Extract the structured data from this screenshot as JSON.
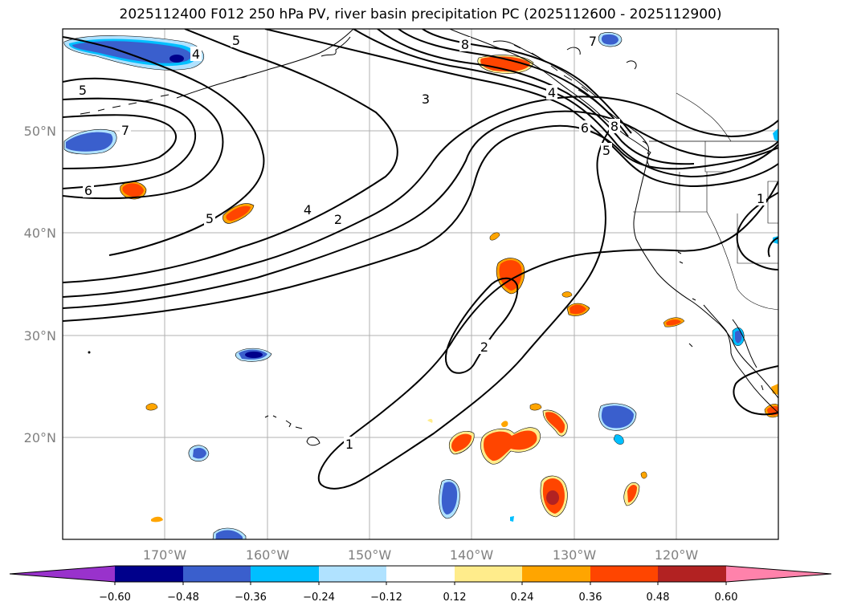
{
  "title": "2025112400 F012 250 hPa PV, river basin precipitation PC (2025112600 - 2025112900)",
  "map": {
    "lon_range": [
      -180,
      -110
    ],
    "lat_range": [
      10,
      60
    ],
    "lon_ticks": [
      {
        "lon": -170,
        "label": "170°W"
      },
      {
        "lon": -160,
        "label": "160°W"
      },
      {
        "lon": -150,
        "label": "150°W"
      },
      {
        "lon": -140,
        "label": "140°W"
      },
      {
        "lon": -130,
        "label": "130°W"
      },
      {
        "lon": -120,
        "label": "120°W"
      }
    ],
    "lat_ticks": [
      {
        "lat": 50,
        "label": "50°N"
      },
      {
        "lat": 40,
        "label": "40°N"
      },
      {
        "lat": 30,
        "label": "30°N"
      },
      {
        "lat": 20,
        "label": "20°N"
      }
    ],
    "grid": true,
    "tick_color": "#808080"
  },
  "colorbar": {
    "extend": "both",
    "ticks": [
      "−0.60",
      "−0.48",
      "−0.36",
      "−0.24",
      "−0.12",
      "0.12",
      "0.24",
      "0.36",
      "0.48",
      "0.60"
    ],
    "levels": [
      -0.6,
      -0.48,
      -0.36,
      -0.24,
      -0.12,
      0.12,
      0.24,
      0.36,
      0.48,
      0.6
    ],
    "colors": [
      "#9932cc",
      "#00008b",
      "#3a5fcd",
      "#00bfff",
      "#b0e2ff",
      "#ffffff",
      "#ffec8b",
      "#ffa500",
      "#ff4500",
      "#b22222",
      "#ff82ab"
    ]
  },
  "pv_contour_labels": [
    "1",
    "2",
    "3",
    "4",
    "5",
    "6",
    "7",
    "8"
  ],
  "pv_contour_label_instances": [
    "5",
    "4",
    "5",
    "7",
    "6",
    "5",
    "4",
    "2",
    "3",
    "8",
    "7",
    "4",
    "6",
    "8",
    "5",
    "1",
    "2",
    "1"
  ]
}
